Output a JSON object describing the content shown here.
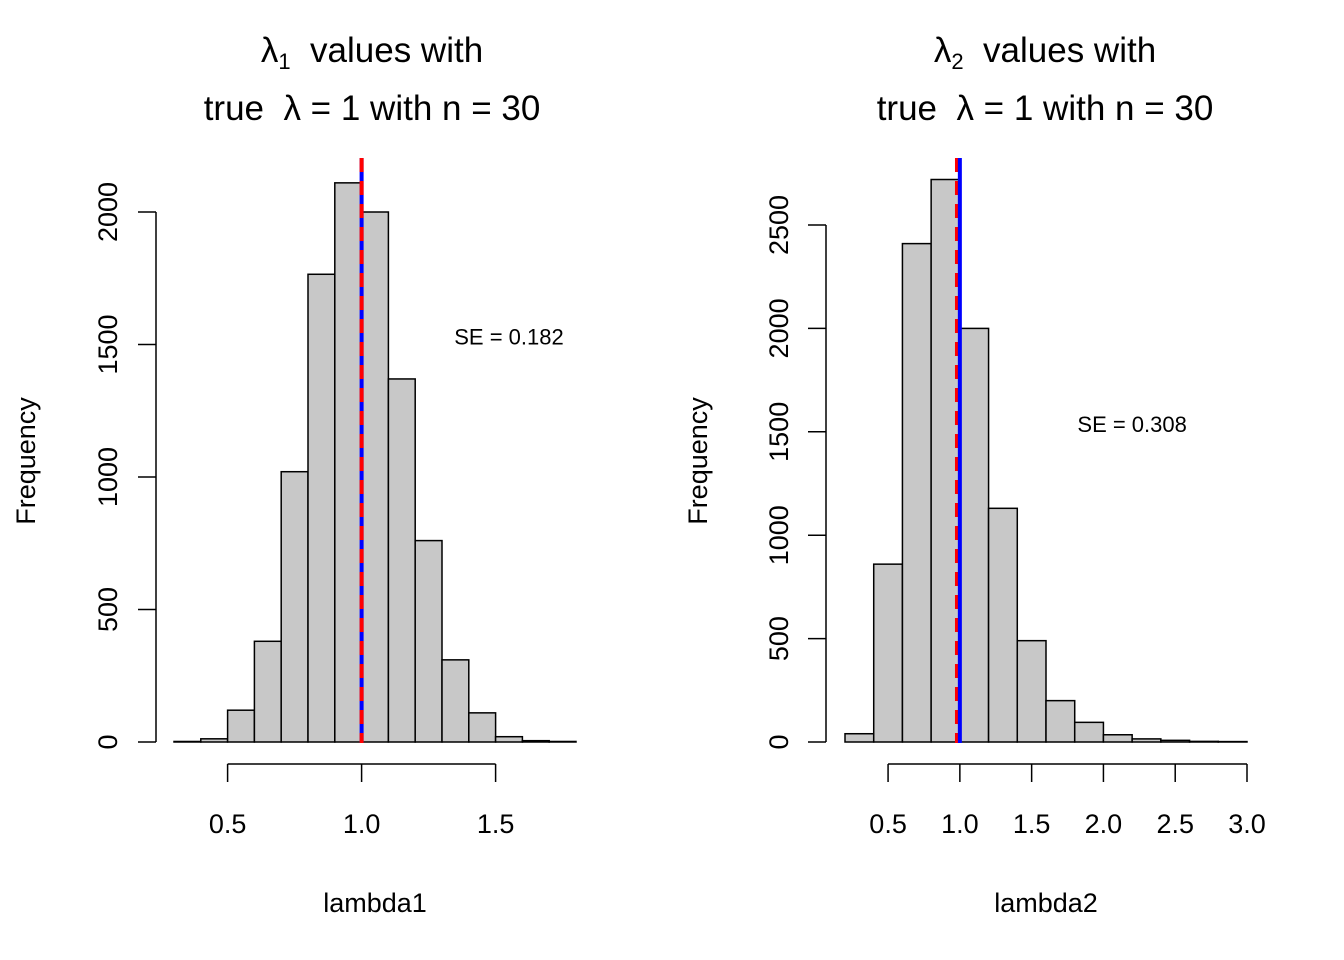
{
  "chart_data": [
    {
      "type": "bar",
      "title_line1": {
        "symbol": "λ",
        "subscript": "1",
        "text": "values with"
      },
      "title_line2": {
        "prefix": "true",
        "symbol": "λ",
        "text": "= 1  with n =  30"
      },
      "xlabel": "lambda1",
      "ylabel": "Frequency",
      "xlim": [
        0.3,
        1.8
      ],
      "ylim": [
        0,
        2100
      ],
      "x_ticks": [
        0.5,
        1.0,
        1.5
      ],
      "x_tick_labels": [
        "0.5",
        "1.0",
        "1.5"
      ],
      "y_ticks": [
        0,
        500,
        1000,
        1500,
        2000
      ],
      "y_tick_labels": [
        "0",
        "500",
        "1000",
        "1500",
        "2000"
      ],
      "bin_edges": [
        0.3,
        0.4,
        0.5,
        0.6,
        0.7,
        0.8,
        0.9,
        1.0,
        1.1,
        1.2,
        1.3,
        1.4,
        1.5,
        1.6,
        1.7,
        1.8
      ],
      "values": [
        2,
        12,
        120,
        380,
        1020,
        1765,
        2110,
        2000,
        1370,
        760,
        310,
        110,
        20,
        5,
        2
      ],
      "bar_fill": "#c8c8c8",
      "vlines": [
        {
          "x": 1.0,
          "color": "#0000ff",
          "style": "solid"
        },
        {
          "x": 1.0,
          "color": "#ff0000",
          "style": "dashed"
        }
      ],
      "annotation": {
        "text": "SE = 0.182",
        "x": 1.55,
        "y": 1500
      }
    },
    {
      "type": "bar",
      "title_line1": {
        "symbol": "λ",
        "subscript": "2",
        "text": "values with"
      },
      "title_line2": {
        "prefix": "true",
        "symbol": "λ",
        "text": "= 1  with n =  30"
      },
      "xlabel": "lambda2",
      "ylabel": "Frequency",
      "xlim": [
        0.2,
        3.0
      ],
      "ylim": [
        0,
        2700
      ],
      "x_ticks": [
        0.5,
        1.0,
        1.5,
        2.0,
        2.5,
        3.0
      ],
      "x_tick_labels": [
        "0.5",
        "1.0",
        "1.5",
        "2.0",
        "2.5",
        "3.0"
      ],
      "y_ticks": [
        0,
        500,
        1000,
        1500,
        2000,
        2500
      ],
      "y_tick_labels": [
        "0",
        "500",
        "1000",
        "1500",
        "2000",
        "2500"
      ],
      "bin_edges": [
        0.2,
        0.4,
        0.6,
        0.8,
        1.0,
        1.2,
        1.4,
        1.6,
        1.8,
        2.0,
        2.2,
        2.4,
        2.6,
        2.8,
        3.0
      ],
      "values": [
        40,
        860,
        2410,
        2720,
        2000,
        1130,
        490,
        200,
        95,
        35,
        15,
        8,
        3,
        2
      ],
      "bar_fill": "#c8c8c8",
      "vlines": [
        {
          "x": 0.98,
          "color": "#ff0000",
          "style": "dashed"
        },
        {
          "x": 1.0,
          "color": "#0000ff",
          "style": "solid"
        }
      ],
      "annotation": {
        "text": "SE = 0.308",
        "x": 2.2,
        "y": 1500
      }
    }
  ]
}
